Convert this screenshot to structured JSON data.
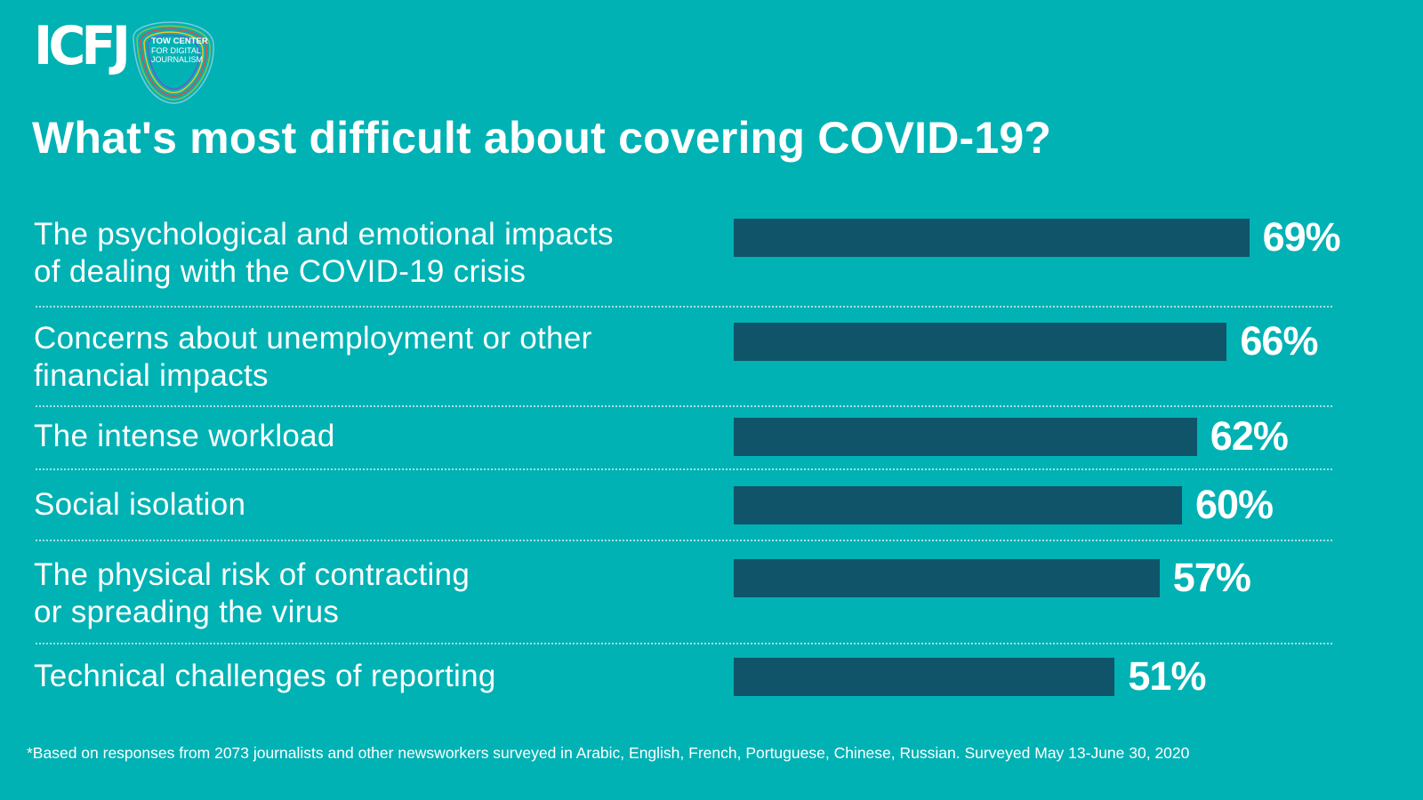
{
  "header": {
    "icfj_logo_text": "ICFJ",
    "tow_logo_line1": "TOW CENTER",
    "tow_logo_line2": "FOR DIGITAL",
    "tow_logo_line3": "JOURNALISM"
  },
  "chart_data": {
    "type": "bar",
    "orientation": "horizontal",
    "title": "What's most difficult about covering COVID-19?",
    "categories": [
      "The psychological and emotional impacts\nof dealing with the COVID-19 crisis",
      "Concerns about unemployment or other\nfinancial impacts",
      "The intense workload",
      "Social isolation",
      "The physical risk of contracting\nor spreading the virus",
      "Technical challenges of reporting"
    ],
    "values": [
      69,
      66,
      62,
      60,
      57,
      51
    ],
    "value_labels": [
      "69%",
      "66%",
      "62%",
      "60%",
      "57%",
      "51%"
    ],
    "unit": "%",
    "xlim": [
      0,
      100
    ],
    "grid": false,
    "bar_color": "#0f5468",
    "background_color": "#00b2b4"
  },
  "footnote": "*Based on responses from 2073 journalists and other newsworkers surveyed in Arabic, English, French, Portuguese, Chinese, Russian. Surveyed May 13-June 30, 2020"
}
